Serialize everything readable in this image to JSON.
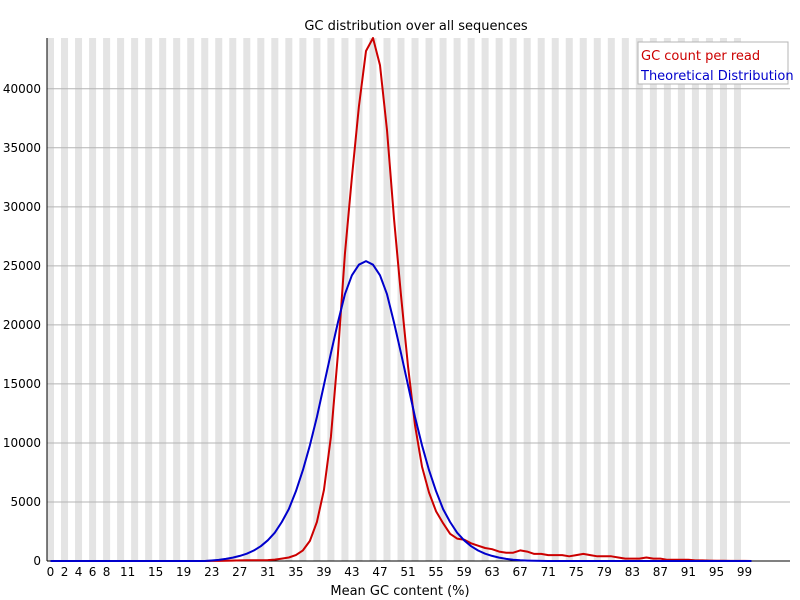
{
  "chart_data": {
    "type": "line",
    "title": "GC distribution over all sequences",
    "xlabel": "Mean GC content (%)",
    "ylabel": "",
    "xlim": [
      0,
      100
    ],
    "ylim": [
      0,
      44300
    ],
    "x_tick_labels": [
      "0",
      "2",
      "4",
      "6",
      "8",
      "11",
      "15",
      "19",
      "23",
      "27",
      "31",
      "35",
      "39",
      "43",
      "47",
      "51",
      "55",
      "59",
      "63",
      "67",
      "71",
      "75",
      "79",
      "83",
      "87",
      "91",
      "95",
      "99"
    ],
    "x_tick_values": [
      0,
      2,
      4,
      6,
      8,
      11,
      15,
      19,
      23,
      27,
      31,
      35,
      39,
      43,
      47,
      51,
      55,
      59,
      63,
      67,
      71,
      75,
      79,
      83,
      87,
      91,
      95,
      99
    ],
    "y_ticks": [
      0,
      5000,
      10000,
      15000,
      20000,
      25000,
      30000,
      35000,
      40000
    ],
    "grid": "horizontal lines with alternating vertical bands",
    "legend_position": "top-right",
    "colors": {
      "gc_count": "#cc0000",
      "theoretical": "#0000cc",
      "band": "#e4e4e4",
      "grid": "#b4b4b4"
    },
    "series": [
      {
        "name": "GC count per read",
        "x": [
          0,
          1,
          2,
          3,
          4,
          5,
          6,
          7,
          8,
          9,
          10,
          11,
          12,
          13,
          14,
          15,
          16,
          17,
          18,
          19,
          20,
          21,
          22,
          23,
          24,
          25,
          26,
          27,
          28,
          29,
          30,
          31,
          32,
          33,
          34,
          35,
          36,
          37,
          38,
          39,
          40,
          41,
          42,
          43,
          44,
          45,
          46,
          47,
          48,
          49,
          50,
          51,
          52,
          53,
          54,
          55,
          56,
          57,
          58,
          59,
          60,
          61,
          62,
          63,
          64,
          65,
          66,
          67,
          68,
          69,
          70,
          71,
          72,
          73,
          74,
          75,
          76,
          77,
          78,
          79,
          80,
          81,
          82,
          83,
          84,
          85,
          86,
          87,
          88,
          89,
          90,
          91,
          92,
          93,
          94,
          95,
          96,
          97,
          98,
          99,
          100
        ],
        "values": [
          0,
          0,
          0,
          0,
          0,
          0,
          0,
          0,
          0,
          0,
          0,
          0,
          0,
          0,
          0,
          0,
          0,
          0,
          0,
          0,
          0,
          0,
          0,
          5,
          10,
          20,
          30,
          50,
          60,
          60,
          60,
          80,
          120,
          200,
          300,
          500,
          900,
          1700,
          3300,
          6000,
          10500,
          17500,
          26000,
          32500,
          38500,
          43200,
          44300,
          42000,
          36500,
          29000,
          22500,
          16500,
          11500,
          8000,
          5800,
          4200,
          3200,
          2300,
          1900,
          1800,
          1500,
          1300,
          1100,
          1000,
          800,
          700,
          700,
          900,
          800,
          600,
          600,
          500,
          500,
          500,
          400,
          500,
          600,
          500,
          400,
          400,
          400,
          300,
          200,
          200,
          200,
          300,
          200,
          200,
          100,
          100,
          100,
          100,
          50,
          50,
          30,
          20,
          20,
          10,
          10,
          5,
          0
        ]
      },
      {
        "name": "Theoretical Distribution",
        "x": [
          0,
          1,
          2,
          3,
          4,
          5,
          6,
          7,
          8,
          9,
          10,
          11,
          12,
          13,
          14,
          15,
          16,
          17,
          18,
          19,
          20,
          21,
          22,
          23,
          24,
          25,
          26,
          27,
          28,
          29,
          30,
          31,
          32,
          33,
          34,
          35,
          36,
          37,
          38,
          39,
          40,
          41,
          42,
          43,
          44,
          45,
          46,
          47,
          48,
          49,
          50,
          51,
          52,
          53,
          54,
          55,
          56,
          57,
          58,
          59,
          60,
          61,
          62,
          63,
          64,
          65,
          66,
          67,
          68,
          69,
          70,
          71,
          72,
          73,
          74,
          75,
          76,
          77,
          78,
          79,
          80,
          81,
          82,
          83,
          84,
          85,
          86,
          87,
          88,
          89,
          90,
          91,
          92,
          93,
          94,
          95,
          96,
          97,
          98,
          99,
          100
        ],
        "values": [
          0,
          0,
          0,
          0,
          0,
          0,
          0,
          0,
          0,
          0,
          0,
          0,
          0,
          0,
          0,
          0,
          0,
          0,
          0,
          0,
          0,
          0,
          0,
          40,
          90,
          180,
          290,
          430,
          620,
          890,
          1250,
          1750,
          2400,
          3300,
          4400,
          5900,
          7700,
          9800,
          12200,
          14900,
          17600,
          20200,
          22600,
          24200,
          25100,
          25400,
          25100,
          24200,
          22600,
          20200,
          17600,
          14900,
          12200,
          9800,
          7700,
          5900,
          4400,
          3300,
          2400,
          1750,
          1250,
          890,
          620,
          430,
          290,
          180,
          110,
          60,
          30,
          15,
          5,
          0,
          0,
          0,
          0,
          0,
          0,
          0,
          0,
          0,
          0,
          0,
          0,
          0,
          0,
          0,
          0,
          0,
          0,
          0,
          0,
          0,
          0,
          0,
          0,
          0,
          0,
          0,
          0,
          0,
          0
        ]
      }
    ]
  }
}
